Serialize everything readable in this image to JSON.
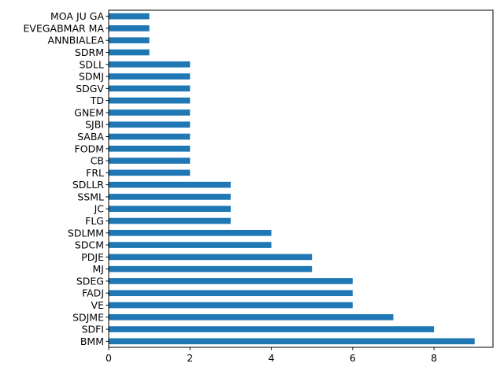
{
  "chart_data": {
    "type": "bar",
    "orientation": "horizontal",
    "title": "",
    "xlabel": "",
    "ylabel": "",
    "xlim": [
      0,
      9.45
    ],
    "x_ticks": [
      0,
      2,
      4,
      6,
      8
    ],
    "grid": false,
    "legend": "none",
    "bar_color": "#1f77b4",
    "categories": [
      "BMM",
      "SDFI",
      "SDJME",
      "VE",
      "FADJ",
      "SDEG",
      "MJ",
      "PDJE",
      "SDCM",
      "SDLMM",
      "FLG",
      "JC",
      "SSML",
      "SDLLR",
      "FRL",
      "CB",
      "FODM",
      "SABA",
      "SJBI",
      "GNEM",
      "TD",
      "SDGV",
      "SDMJ",
      "SDLL",
      "SDRM",
      "ANNBIALEA",
      "EVEGABMAR MA",
      "MOA JU GA"
    ],
    "values": [
      9,
      8,
      7,
      6,
      6,
      6,
      5,
      5,
      4,
      4,
      3,
      3,
      3,
      3,
      2,
      2,
      2,
      2,
      2,
      2,
      2,
      2,
      2,
      2,
      1,
      1,
      1,
      1
    ]
  }
}
